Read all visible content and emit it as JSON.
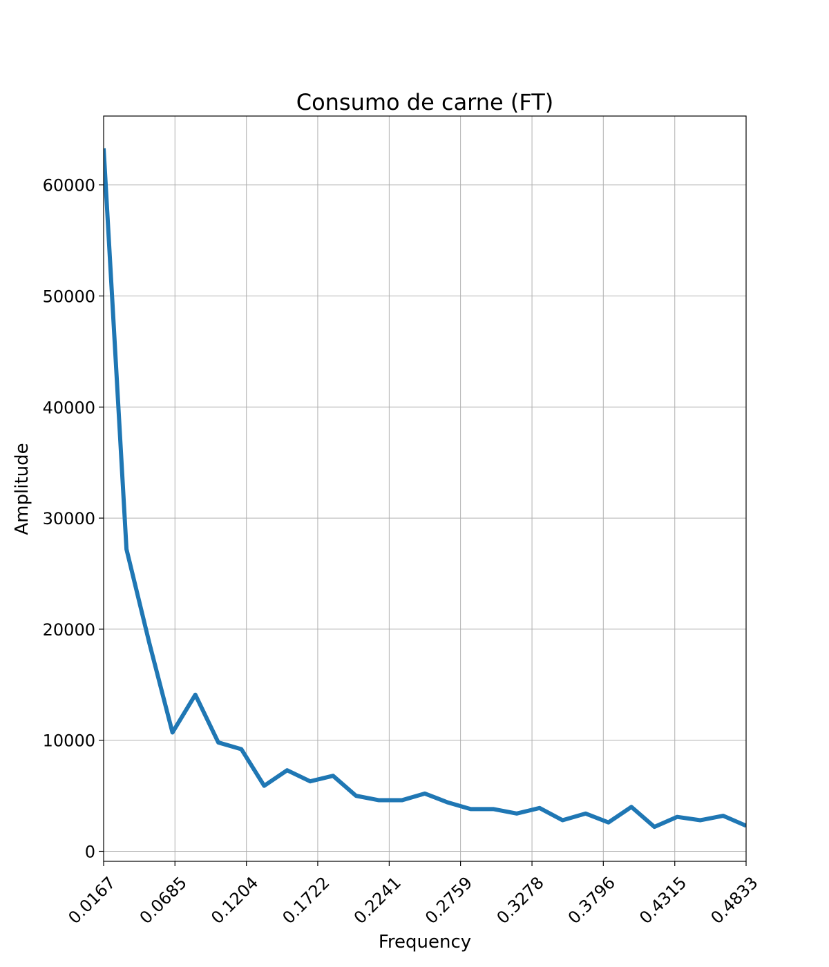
{
  "chart_data": {
    "type": "line",
    "title": "Consumo de carne (FT)",
    "xlabel": "Frequency",
    "ylabel": "Amplitude",
    "xlim": [
      0.0167,
      0.4833
    ],
    "ylim": [
      -900,
      66200
    ],
    "grid": true,
    "x_ticks": [
      "0.0167",
      "0.0685",
      "0.1204",
      "0.1722",
      "0.2241",
      "0.2759",
      "0.3278",
      "0.3796",
      "0.4315",
      "0.4833"
    ],
    "y_ticks": [
      0,
      10000,
      20000,
      30000,
      40000,
      50000,
      60000
    ],
    "series": [
      {
        "color": "#1f77b4",
        "x": [
          0.0167,
          0.0333,
          0.05,
          0.0667,
          0.0833,
          0.1,
          0.1167,
          0.1333,
          0.15,
          0.1667,
          0.1833,
          0.2,
          0.2167,
          0.2333,
          0.25,
          0.2667,
          0.2833,
          0.3,
          0.3167,
          0.3333,
          0.35,
          0.3667,
          0.3833,
          0.4,
          0.4167,
          0.4333,
          0.45,
          0.4667,
          0.4833
        ],
        "y": [
          63300,
          27200,
          18700,
          10700,
          14100,
          9800,
          9200,
          5900,
          7300,
          6300,
          6800,
          5000,
          4600,
          4600,
          5200,
          4400,
          3800,
          3800,
          3400,
          3900,
          2800,
          3400,
          2600,
          4000,
          2200,
          3100,
          2800,
          3200,
          2300
        ]
      }
    ]
  }
}
